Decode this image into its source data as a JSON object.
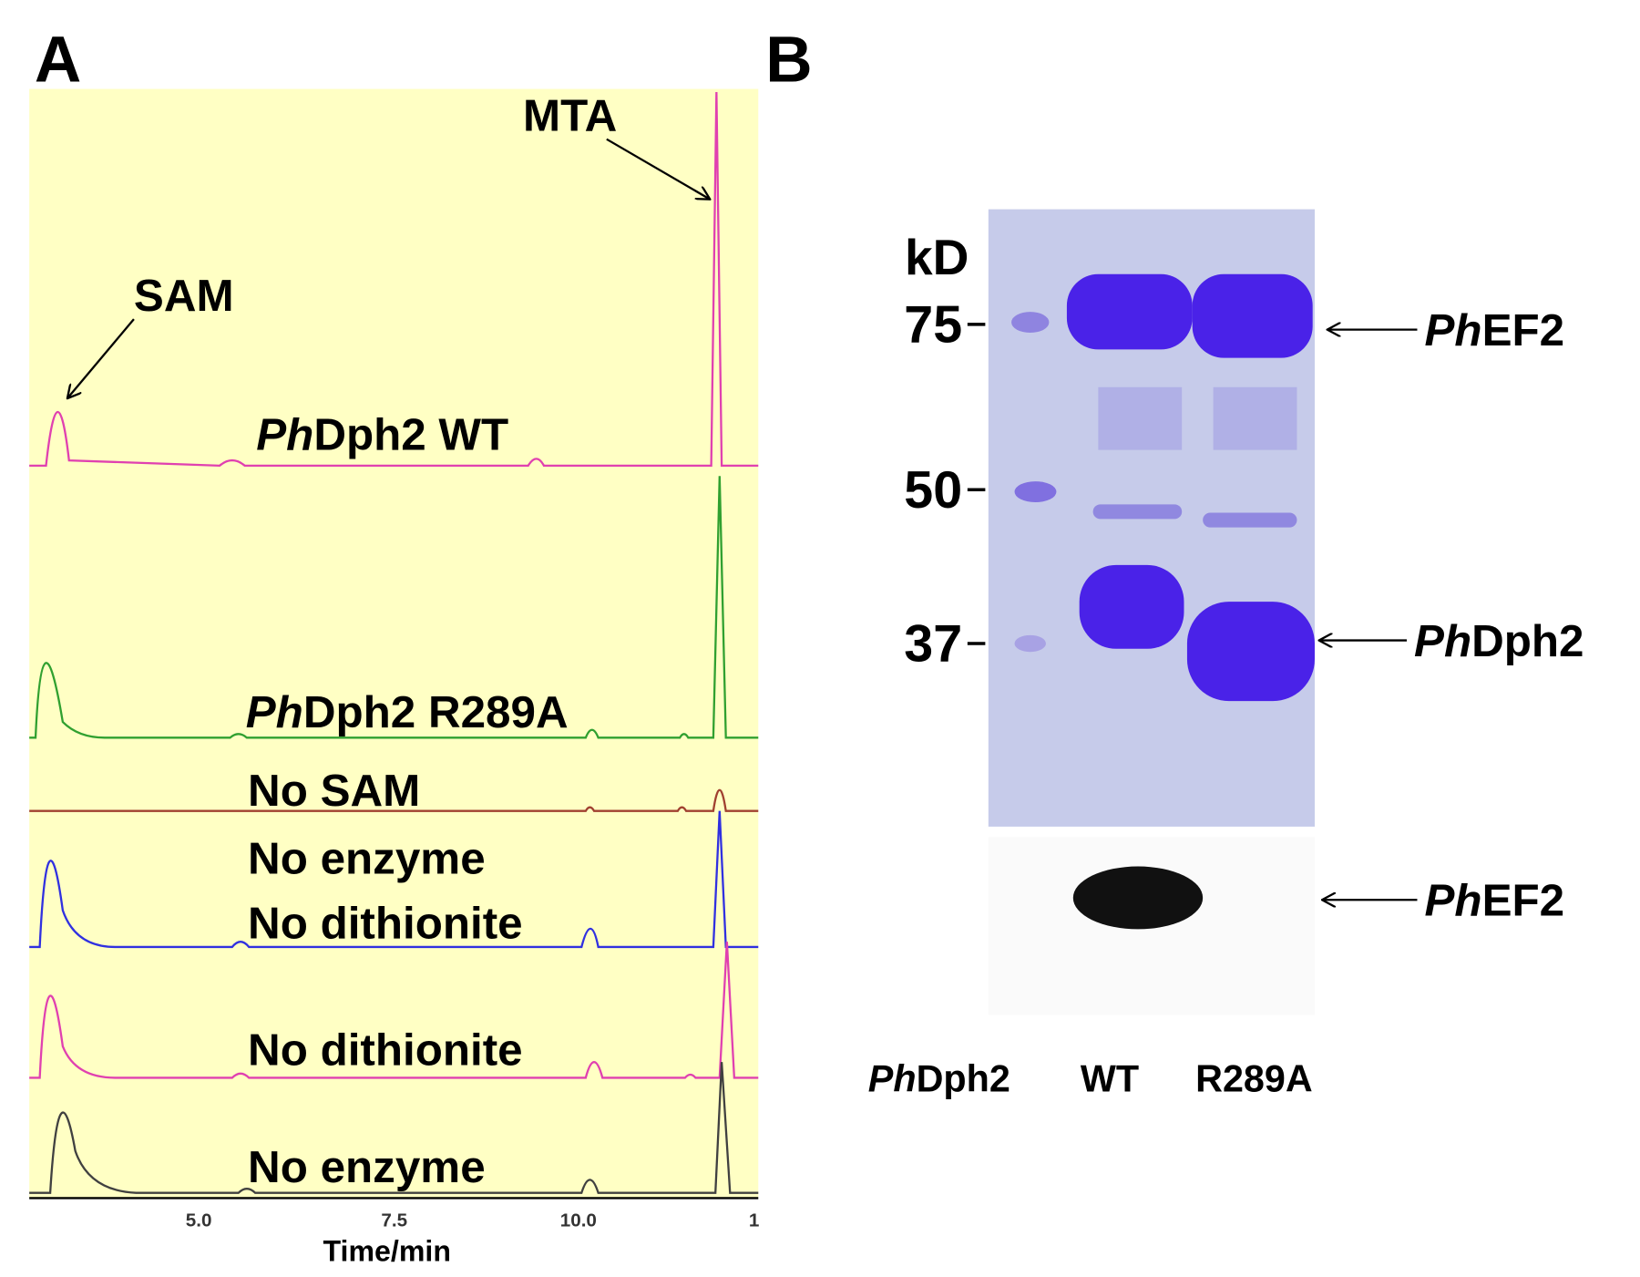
{
  "panel_a": {
    "letter": "A",
    "annotations": {
      "sam": "SAM",
      "mta": "MTA"
    },
    "traces": [
      {
        "italic": "Ph",
        "rest": "Dph2 WT"
      },
      {
        "italic": "Ph",
        "rest": "Dph2 R289A"
      },
      {
        "rest": "No SAM"
      },
      {
        "rest": "No enzyme"
      },
      {
        "rest": "No dithionite"
      },
      {
        "rest": "No dithionite"
      },
      {
        "rest": "No enzyme"
      }
    ],
    "x_ticks": [
      "5.0",
      "7.5",
      "10.0",
      "1"
    ],
    "x_label": "Time/min"
  },
  "panel_b": {
    "letter": "B",
    "unit": "kD",
    "markers": [
      "75",
      "50",
      "37"
    ],
    "bands": [
      {
        "italic": "Ph",
        "rest": "EF2"
      },
      {
        "italic": "Ph",
        "rest": "Dph2"
      },
      {
        "italic": "Ph",
        "rest": "EF2"
      }
    ],
    "lanes": [
      {
        "italic": "Ph",
        "rest": "Dph2"
      },
      {
        "rest": "WT"
      },
      {
        "rest": "R289A"
      }
    ]
  }
}
